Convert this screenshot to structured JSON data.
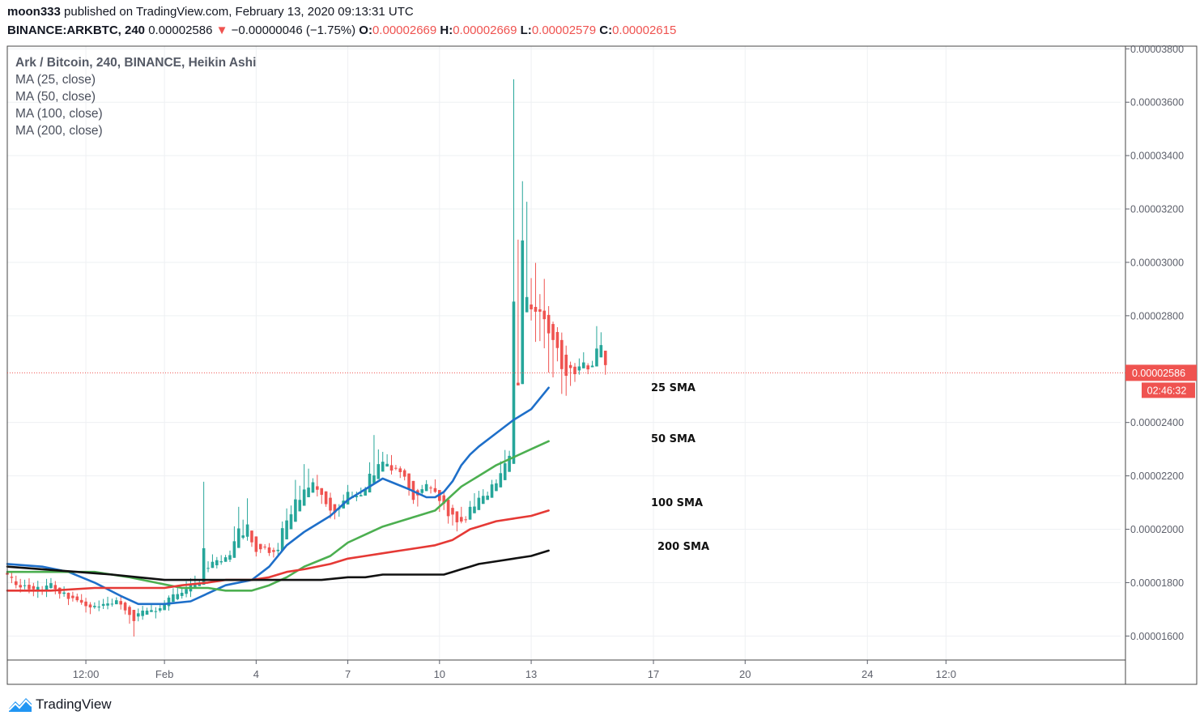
{
  "header": {
    "publisher": "moon333",
    "published_text": "published on TradingView.com, February 13, 2020 09:13:31 UTC",
    "symbol": "BINANCE:ARKBTC, 240",
    "last_price": "0.00002586",
    "change_arrow": "▼",
    "change": "−0.00000046 (−1.75%)",
    "o_label": "O:",
    "o_value": "0.00002669",
    "h_label": "H:",
    "h_value": "0.00002669",
    "l_label": "L:",
    "l_value": "0.00002579",
    "c_label": "C:",
    "c_value": "0.00002615"
  },
  "legend": {
    "title": "Ark / Bitcoin, 240, BINANCE, Heikin Ashi",
    "items": [
      "MA (25, close)",
      "MA (50, close)",
      "MA (100, close)",
      "MA (200, close)"
    ]
  },
  "price_tag": {
    "value": "0.00002586",
    "countdown": "02:46:32"
  },
  "footer": {
    "brand": "TradingView"
  },
  "colors": {
    "up": "#26a69a",
    "down": "#ef5350",
    "sma25": "#1e6fc9",
    "sma50": "#4caf50",
    "sma100": "#e53935",
    "sma200": "#111111",
    "grid": "#eef0f3",
    "axis": "#5d606b"
  },
  "chart_data": {
    "type": "candlestick",
    "ylim": [
      1.51e-05,
      3.81e-05
    ],
    "x_range": [
      0,
      255
    ],
    "y_ticks": [
      {
        "value": 3.8e-05,
        "label": "0.00003800"
      },
      {
        "value": 3.6e-05,
        "label": "0.00003600"
      },
      {
        "value": 3.4e-05,
        "label": "0.00003400"
      },
      {
        "value": 3.2e-05,
        "label": "0.00003200"
      },
      {
        "value": 3e-05,
        "label": "0.00003000"
      },
      {
        "value": 2.8e-05,
        "label": "0.00002800"
      },
      {
        "value": 2.4e-05,
        "label": "0.00002400"
      },
      {
        "value": 2.2e-05,
        "label": "0.00002200"
      },
      {
        "value": 2e-05,
        "label": "0.00002000"
      },
      {
        "value": 1.8e-05,
        "label": "0.00001800"
      },
      {
        "value": 1.6e-05,
        "label": "0.00001600"
      }
    ],
    "x_ticks": [
      {
        "x": 18,
        "label": "12:00"
      },
      {
        "x": 36,
        "label": "Feb"
      },
      {
        "x": 57,
        "label": "4"
      },
      {
        "x": 78,
        "label": "7"
      },
      {
        "x": 99,
        "label": "10"
      },
      {
        "x": 120,
        "label": "13"
      },
      {
        "x": 148,
        "label": "17"
      },
      {
        "x": 169,
        "label": "20"
      },
      {
        "x": 197,
        "label": "24"
      },
      {
        "x": 215,
        "label": "12:0"
      }
    ],
    "current_price": 2.586e-05,
    "candles": [
      [
        1.836e-05,
        1.83e-05,
        1.851e-05,
        1.817e-05
      ],
      [
        1.822e-05,
        1.818e-05,
        1.839e-05,
        1.798e-05
      ],
      [
        1.805e-05,
        1.791e-05,
        1.826e-05,
        1.778e-05
      ],
      [
        1.791e-05,
        1.782e-05,
        1.814e-05,
        1.763e-05
      ],
      [
        1.787e-05,
        1.79e-05,
        1.811e-05,
        1.775e-05
      ],
      [
        1.792e-05,
        1.775e-05,
        1.816e-05,
        1.76e-05
      ],
      [
        1.787e-05,
        1.775e-05,
        1.799e-05,
        1.749e-05
      ],
      [
        1.769e-05,
        1.784e-05,
        1.807e-05,
        1.743e-05
      ],
      [
        1.773e-05,
        1.771e-05,
        1.787e-05,
        1.754e-05
      ],
      [
        1.771e-05,
        1.789e-05,
        1.814e-05,
        1.746e-05
      ],
      [
        1.78e-05,
        1.798e-05,
        1.817e-05,
        1.777e-05
      ],
      [
        1.791e-05,
        1.776e-05,
        1.806e-05,
        1.756e-05
      ],
      [
        1.781e-05,
        1.758e-05,
        1.782e-05,
        1.74e-05
      ],
      [
        1.758e-05,
        1.763e-05,
        1.786e-05,
        1.747e-05
      ],
      [
        1.762e-05,
        1.739e-05,
        1.763e-05,
        1.716e-05
      ],
      [
        1.751e-05,
        1.742e-05,
        1.766e-05,
        1.729e-05
      ],
      [
        1.748e-05,
        1.734e-05,
        1.759e-05,
        1.727e-05
      ],
      [
        1.735e-05,
        1.725e-05,
        1.757e-05,
        1.717e-05
      ],
      [
        1.729e-05,
        1.712e-05,
        1.743e-05,
        1.688e-05
      ],
      [
        1.718e-05,
        1.707e-05,
        1.727e-05,
        1.682e-05
      ],
      [
        1.708e-05,
        1.713e-05,
        1.726e-05,
        1.702e-05
      ],
      [
        1.71e-05,
        1.71e-05,
        1.733e-05,
        1.693e-05
      ],
      [
        1.713e-05,
        1.72e-05,
        1.739e-05,
        1.701e-05
      ],
      [
        1.714e-05,
        1.722e-05,
        1.747e-05,
        1.7e-05
      ],
      [
        1.719e-05,
        1.721e-05,
        1.74e-05,
        1.71e-05
      ],
      [
        1.719e-05,
        1.734e-05,
        1.745e-05,
        1.719e-05
      ],
      [
        1.731e-05,
        1.718e-05,
        1.752e-05,
        1.699e-05
      ],
      [
        1.725e-05,
        1.696e-05,
        1.729e-05,
        1.681e-05
      ],
      [
        1.709e-05,
        1.679e-05,
        1.715e-05,
        1.646e-05
      ],
      [
        1.698e-05,
        1.656e-05,
        1.698e-05,
        1.598e-05
      ],
      [
        1.673e-05,
        1.685e-05,
        1.703e-05,
        1.655e-05
      ],
      [
        1.675e-05,
        1.695e-05,
        1.713e-05,
        1.661e-05
      ],
      [
        1.68e-05,
        1.695e-05,
        1.706e-05,
        1.68e-05
      ],
      [
        1.69e-05,
        1.697e-05,
        1.716e-05,
        1.69e-05
      ],
      [
        1.693e-05,
        1.693e-05,
        1.708e-05,
        1.666e-05
      ],
      [
        1.695e-05,
        1.704e-05,
        1.716e-05,
        1.688e-05
      ],
      [
        1.697e-05,
        1.723e-05,
        1.734e-05,
        1.697e-05
      ],
      [
        1.712e-05,
        1.744e-05,
        1.752e-05,
        1.695e-05
      ],
      [
        1.728e-05,
        1.756e-05,
        1.779e-05,
        1.728e-05
      ],
      [
        1.738e-05,
        1.757e-05,
        1.78e-05,
        1.734e-05
      ],
      [
        1.75e-05,
        1.762e-05,
        1.783e-05,
        1.74e-05
      ],
      [
        1.758e-05,
        1.776e-05,
        1.805e-05,
        1.745e-05
      ],
      [
        1.767e-05,
        1.792e-05,
        1.816e-05,
        1.746e-05
      ],
      [
        1.778e-05,
        1.795e-05,
        1.826e-05,
        1.778e-05
      ],
      [
        1.787e-05,
        1.794e-05,
        1.808e-05,
        1.787e-05
      ],
      [
        1.792e-05,
        1.929e-05,
        2.178e-05,
        1.792e-05
      ],
      [
        1.855e-05,
        1.855e-05,
        1.88e-05,
        1.839e-05
      ],
      [
        1.855e-05,
        1.878e-05,
        1.906e-05,
        1.855e-05
      ],
      [
        1.865e-05,
        1.884e-05,
        1.896e-05,
        1.853e-05
      ],
      [
        1.876e-05,
        1.88e-05,
        1.903e-05,
        1.867e-05
      ],
      [
        1.878e-05,
        1.895e-05,
        1.904e-05,
        1.878e-05
      ],
      [
        1.886e-05,
        1.903e-05,
        1.92e-05,
        1.877e-05
      ],
      [
        1.893e-05,
        1.955e-05,
        2.011e-05,
        1.893e-05
      ],
      [
        1.93e-05,
        2.003e-05,
        2.084e-05,
        1.93e-05
      ],
      [
        1.968e-05,
        1.977e-05,
        2.036e-05,
        1.962e-05
      ],
      [
        1.972e-05,
        2.018e-05,
        2.116e-05,
        1.957e-05
      ],
      [
        1.995e-05,
        1.951e-05,
        1.995e-05,
        1.934e-05
      ],
      [
        1.973e-05,
        1.915e-05,
        1.973e-05,
        1.898e-05
      ],
      [
        1.945e-05,
        1.925e-05,
        1.945e-05,
        1.911e-05
      ],
      [
        1.935e-05,
        1.932e-05,
        1.944e-05,
        1.924e-05
      ],
      [
        1.932e-05,
        1.911e-05,
        1.948e-05,
        1.9e-05
      ],
      [
        1.922e-05,
        1.915e-05,
        1.931e-05,
        1.894e-05
      ],
      [
        1.918e-05,
        1.923e-05,
        1.949e-05,
        1.903e-05
      ],
      [
        1.92e-05,
        2.004e-05,
        2.029e-05,
        1.92e-05
      ],
      [
        1.962e-05,
        2.033e-05,
        2.078e-05,
        1.962e-05
      ],
      [
        2e-05,
        2.056e-05,
        2.089e-05,
        2e-05
      ],
      [
        2.028e-05,
        2.112e-05,
        2.185e-05,
        2.028e-05
      ],
      [
        2.067e-05,
        2.11e-05,
        2.163e-05,
        2.067e-05
      ],
      [
        2.088e-05,
        2.149e-05,
        2.244e-05,
        2.088e-05
      ],
      [
        2.12e-05,
        2.156e-05,
        2.227e-05,
        2.12e-05
      ],
      [
        2.137e-05,
        2.176e-05,
        2.191e-05,
        2.137e-05
      ],
      [
        2.161e-05,
        2.148e-05,
        2.204e-05,
        2.123e-05
      ],
      [
        2.154e-05,
        2.129e-05,
        2.154e-05,
        2.095e-05
      ],
      [
        2.142e-05,
        2.094e-05,
        2.142e-05,
        2.084e-05
      ],
      [
        2.118e-05,
        2.07e-05,
        2.137e-05,
        2.04e-05
      ],
      [
        2.094e-05,
        2.061e-05,
        2.094e-05,
        2.037e-05
      ],
      [
        2.078e-05,
        2.078e-05,
        2.094e-05,
        2.047e-05
      ],
      [
        2.078e-05,
        2.107e-05,
        2.13e-05,
        2.078e-05
      ],
      [
        2.093e-05,
        2.14e-05,
        2.166e-05,
        2.093e-05
      ],
      [
        2.117e-05,
        2.123e-05,
        2.141e-05,
        2.117e-05
      ],
      [
        2.12e-05,
        2.125e-05,
        2.141e-05,
        2.105e-05
      ],
      [
        2.123e-05,
        2.128e-05,
        2.156e-05,
        2.123e-05
      ],
      [
        2.126e-05,
        2.149e-05,
        2.159e-05,
        2.126e-05
      ],
      [
        2.138e-05,
        2.208e-05,
        2.251e-05,
        2.138e-05
      ],
      [
        2.173e-05,
        2.202e-05,
        2.353e-05,
        2.173e-05
      ],
      [
        2.188e-05,
        2.244e-05,
        2.299e-05,
        2.188e-05
      ],
      [
        2.216e-05,
        2.253e-05,
        2.29e-05,
        2.216e-05
      ],
      [
        2.235e-05,
        2.245e-05,
        2.281e-05,
        2.235e-05
      ],
      [
        2.24e-05,
        2.22e-05,
        2.278e-05,
        2.205e-05
      ],
      [
        2.23e-05,
        2.227e-05,
        2.241e-05,
        2.221e-05
      ],
      [
        2.228e-05,
        2.214e-05,
        2.236e-05,
        2.192e-05
      ],
      [
        2.221e-05,
        2.197e-05,
        2.227e-05,
        2.183e-05
      ],
      [
        2.209e-05,
        2.153e-05,
        2.209e-05,
        2.126e-05
      ],
      [
        2.181e-05,
        2.11e-05,
        2.181e-05,
        2.095e-05
      ],
      [
        2.146e-05,
        2.127e-05,
        2.151e-05,
        2.085e-05
      ],
      [
        2.136e-05,
        2.15e-05,
        2.166e-05,
        2.129e-05
      ],
      [
        2.143e-05,
        2.169e-05,
        2.184e-05,
        2.143e-05
      ],
      [
        2.156e-05,
        2.153e-05,
        2.163e-05,
        2.134e-05
      ],
      [
        2.154e-05,
        2.14e-05,
        2.187e-05,
        2.136e-05
      ],
      [
        2.147e-05,
        2.106e-05,
        2.147e-05,
        2.065e-05
      ],
      [
        2.127e-05,
        2.096e-05,
        2.137e-05,
        2.072e-05
      ],
      [
        2.111e-05,
        2.049e-05,
        2.111e-05,
        2.021e-05
      ],
      [
        2.08e-05,
        2.055e-05,
        2.092e-05,
        2.014e-05
      ],
      [
        2.067e-05,
        2.026e-05,
        2.067e-05,
        1.992e-05
      ],
      [
        2.046e-05,
        2.029e-05,
        2.084e-05,
        2.022e-05
      ],
      [
        2.037e-05,
        2.036e-05,
        2.049e-05,
        2.024e-05
      ],
      [
        2.036e-05,
        2.084e-05,
        2.106e-05,
        2.036e-05
      ],
      [
        2.06e-05,
        2.085e-05,
        2.135e-05,
        2.06e-05
      ],
      [
        2.072e-05,
        2.118e-05,
        2.144e-05,
        2.072e-05
      ],
      [
        2.095e-05,
        2.125e-05,
        2.15e-05,
        2.095e-05
      ],
      [
        2.11e-05,
        2.126e-05,
        2.141e-05,
        2.11e-05
      ],
      [
        2.118e-05,
        2.168e-05,
        2.185e-05,
        2.118e-05
      ],
      [
        2.143e-05,
        2.172e-05,
        2.187e-05,
        2.143e-05
      ],
      [
        2.157e-05,
        2.21e-05,
        2.255e-05,
        2.157e-05
      ],
      [
        2.184e-05,
        2.247e-05,
        2.297e-05,
        2.184e-05
      ],
      [
        2.215e-05,
        2.275e-05,
        2.294e-05,
        2.215e-05
      ],
      [
        2.245e-05,
        2.853e-05,
        3.686e-05,
        2.245e-05
      ],
      [
        2.549e-05,
        2.539e-05,
        3.085e-05,
        2.539e-05
      ],
      [
        2.544e-05,
        3.082e-05,
        3.304e-05,
        2.544e-05
      ],
      [
        2.813e-05,
        2.87e-05,
        3.227e-05,
        2.813e-05
      ],
      [
        2.842e-05,
        2.824e-05,
        2.941e-05,
        2.782e-05
      ],
      [
        2.833e-05,
        2.815e-05,
        2.998e-05,
        2.702e-05
      ],
      [
        2.824e-05,
        2.815e-05,
        2.881e-05,
        2.705e-05
      ],
      [
        2.819e-05,
        2.787e-05,
        2.938e-05,
        2.678e-05
      ],
      [
        2.803e-05,
        2.734e-05,
        2.836e-05,
        2.587e-05
      ],
      [
        2.769e-05,
        2.709e-05,
        2.778e-05,
        2.569e-05
      ],
      [
        2.739e-05,
        2.679e-05,
        2.757e-05,
        2.629e-05
      ],
      [
        2.709e-05,
        2.6e-05,
        2.737e-05,
        2.507e-05
      ],
      [
        2.654e-05,
        2.575e-05,
        2.688e-05,
        2.5e-05
      ],
      [
        2.615e-05,
        2.604e-05,
        2.628e-05,
        2.537e-05
      ],
      [
        2.609e-05,
        2.581e-05,
        2.623e-05,
        2.552e-05
      ],
      [
        2.595e-05,
        2.61e-05,
        2.64e-05,
        2.579e-05
      ],
      [
        2.603e-05,
        2.625e-05,
        2.663e-05,
        2.603e-05
      ],
      [
        2.614e-05,
        2.599e-05,
        2.622e-05,
        2.581e-05
      ],
      [
        2.607e-05,
        2.613e-05,
        2.631e-05,
        2.607e-05
      ],
      [
        2.61e-05,
        2.677e-05,
        2.761e-05,
        2.61e-05
      ],
      [
        2.644e-05,
        2.69e-05,
        2.738e-05,
        2.644e-05
      ],
      [
        2.669e-05,
        2.615e-05,
        2.669e-05,
        2.579e-05
      ]
    ],
    "series": [
      {
        "name": "25 SMA",
        "color": "#1e6fc9",
        "x": [
          0,
          8,
          14,
          20,
          26,
          30,
          36,
          42,
          46,
          50,
          56,
          60,
          64,
          68,
          74,
          78,
          82,
          86,
          89,
          92,
          96,
          98,
          100,
          102,
          104,
          106,
          108,
          112,
          116,
          120,
          124
        ],
        "values": [
          1.87e-05,
          1.86e-05,
          1.84e-05,
          1.8e-05,
          1.75e-05,
          1.72e-05,
          1.72e-05,
          1.73e-05,
          1.76e-05,
          1.79e-05,
          1.81e-05,
          1.86e-05,
          1.94e-05,
          1.99e-05,
          2.05e-05,
          2.11e-05,
          2.15e-05,
          2.19e-05,
          2.17e-05,
          2.15e-05,
          2.12e-05,
          2.12e-05,
          2.14e-05,
          2.18e-05,
          2.24e-05,
          2.28e-05,
          2.31e-05,
          2.36e-05,
          2.41e-05,
          2.45e-05,
          2.53e-05
        ]
      },
      {
        "name": "50 SMA",
        "color": "#4caf50",
        "x": [
          0,
          10,
          20,
          28,
          34,
          40,
          46,
          50,
          56,
          60,
          64,
          68,
          74,
          78,
          82,
          86,
          90,
          94,
          98,
          100,
          102,
          104,
          106,
          108,
          112,
          116,
          120,
          124
        ],
        "values": [
          1.84e-05,
          1.84e-05,
          1.84e-05,
          1.82e-05,
          1.8e-05,
          1.78e-05,
          1.78e-05,
          1.77e-05,
          1.77e-05,
          1.79e-05,
          1.82e-05,
          1.86e-05,
          1.9e-05,
          1.95e-05,
          1.98e-05,
          2.01e-05,
          2.03e-05,
          2.05e-05,
          2.07e-05,
          2.1e-05,
          2.13e-05,
          2.16e-05,
          2.18e-05,
          2.2e-05,
          2.24e-05,
          2.27e-05,
          2.3e-05,
          2.33e-05
        ]
      },
      {
        "name": "100 SMA",
        "color": "#e53935",
        "x": [
          0,
          10,
          20,
          30,
          36,
          40,
          46,
          50,
          56,
          60,
          64,
          68,
          74,
          78,
          82,
          86,
          90,
          94,
          98,
          100,
          102,
          104,
          106,
          108,
          112,
          116,
          120,
          124
        ],
        "values": [
          1.77e-05,
          1.77e-05,
          1.78e-05,
          1.78e-05,
          1.78e-05,
          1.79e-05,
          1.8e-05,
          1.81e-05,
          1.81e-05,
          1.82e-05,
          1.84e-05,
          1.85e-05,
          1.87e-05,
          1.89e-05,
          1.9e-05,
          1.91e-05,
          1.92e-05,
          1.93e-05,
          1.94e-05,
          1.95e-05,
          1.96e-05,
          1.98e-05,
          2e-05,
          2.01e-05,
          2.03e-05,
          2.04e-05,
          2.05e-05,
          2.07e-05
        ]
      },
      {
        "name": "200 SMA",
        "color": "#111111",
        "x": [
          0,
          8,
          16,
          24,
          30,
          36,
          42,
          48,
          54,
          60,
          66,
          72,
          78,
          82,
          86,
          90,
          94,
          98,
          100,
          102,
          104,
          106,
          108,
          112,
          116,
          120,
          124
        ],
        "values": [
          1.86e-05,
          1.85e-05,
          1.84e-05,
          1.83e-05,
          1.82e-05,
          1.81e-05,
          1.81e-05,
          1.81e-05,
          1.81e-05,
          1.81e-05,
          1.81e-05,
          1.81e-05,
          1.82e-05,
          1.82e-05,
          1.83e-05,
          1.83e-05,
          1.83e-05,
          1.83e-05,
          1.83e-05,
          1.84e-05,
          1.85e-05,
          1.86e-05,
          1.87e-05,
          1.88e-05,
          1.89e-05,
          1.9e-05,
          1.92e-05
        ]
      }
    ]
  }
}
